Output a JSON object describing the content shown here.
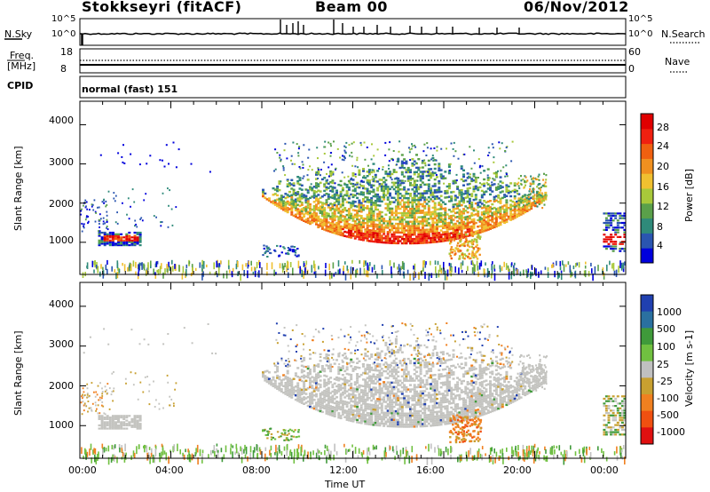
{
  "header": {
    "station": "Stokkseyri (fitACF)",
    "beam": "Beam 00",
    "date": "06/Nov/2012"
  },
  "noise_panel": {
    "left_label": "N.Sky",
    "right_label": "N.Search",
    "left_ticks": [
      "10^5",
      "10^0"
    ],
    "right_ticks": [
      "10^5",
      "10^0"
    ]
  },
  "freq_panel": {
    "left_label_1": "Freq.",
    "left_label_2": "[MHz]",
    "right_label": "Nave",
    "left_ticks": [
      "18",
      "8"
    ],
    "right_ticks": [
      "60",
      "0"
    ],
    "cpid_label": "CPID",
    "cpid_value": "normal (fast) 151"
  },
  "colors": {
    "power_scale": [
      "#0000dd",
      "#2a55b0",
      "#2f8a7a",
      "#5aa04a",
      "#a8c83a",
      "#f0c030",
      "#f09020",
      "#f06010",
      "#f02010",
      "#e00000"
    ],
    "velocity_scale": [
      "#2040b0",
      "#2a70a0",
      "#3f9a3a",
      "#70c040",
      "#c0c0c0",
      "#c8a030",
      "#f08020",
      "#f05010",
      "#e01010"
    ]
  },
  "chart_data": [
    {
      "type": "heatmap",
      "title": "",
      "xlabel": "Time UT",
      "ylabel": "Slant Range [km]",
      "x_ticks": [
        "00:00",
        "04:00",
        "08:00",
        "12:00",
        "16:00",
        "20:00",
        "00:00"
      ],
      "y_ticks": [
        "1000",
        "2000",
        "3000",
        "4000"
      ],
      "ylim": [
        180,
        4600
      ],
      "colorbar": {
        "label": "Power [dB]",
        "ticks": [
          "4",
          "8",
          "12",
          "16",
          "20",
          "24",
          "28"
        ],
        "range": [
          0,
          30
        ]
      }
    },
    {
      "type": "heatmap",
      "title": "",
      "xlabel": "Time UT",
      "ylabel": "Slant Range [km]",
      "x_ticks": [
        "00:00",
        "04:00",
        "08:00",
        "12:00",
        "16:00",
        "20:00",
        "00:00"
      ],
      "y_ticks": [
        "1000",
        "2000",
        "3000",
        "4000"
      ],
      "ylim": [
        180,
        4600
      ],
      "colorbar": {
        "label": "Velocity [m s-1]",
        "ticks": [
          "1000",
          "500",
          "100",
          "25",
          "-25",
          "-100",
          "-500",
          "-1000"
        ]
      }
    }
  ]
}
